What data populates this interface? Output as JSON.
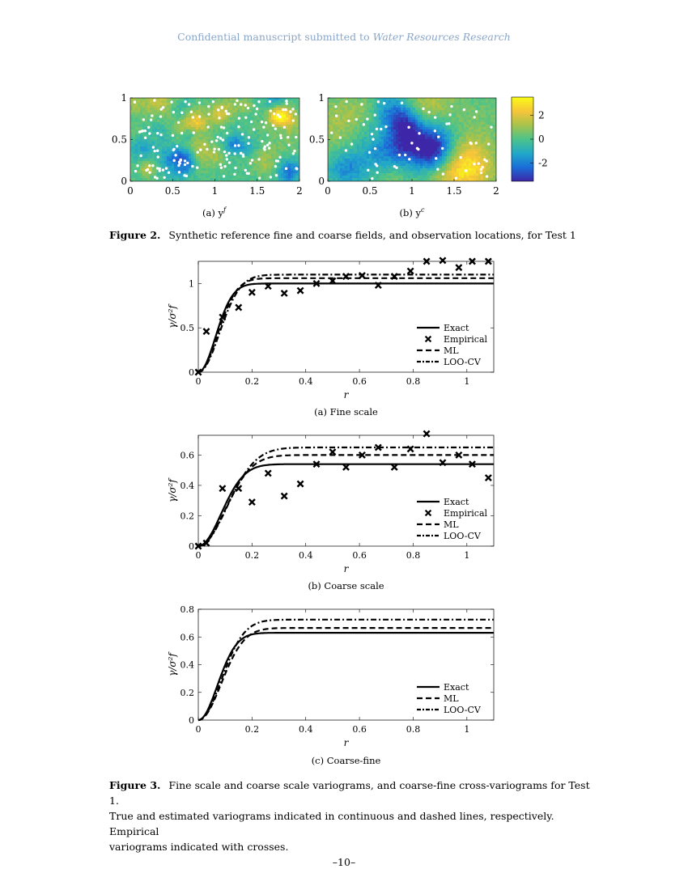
{
  "header": {
    "prefix": "Confidential manuscript submitted to",
    "journal": "Water Resources Research"
  },
  "fields": {
    "panels": [
      {
        "label": "(a) y",
        "sup": "f",
        "x_ticks": [
          "0",
          "0.5",
          "1",
          "1.5",
          "2"
        ],
        "y_ticks": [
          "0",
          "0.5",
          "1"
        ]
      },
      {
        "label": "(b) y",
        "sup": "c",
        "x_ticks": [
          "0",
          "0.5",
          "1",
          "1.5",
          "2"
        ],
        "y_ticks": [
          "0",
          "0.5",
          "1"
        ]
      }
    ],
    "colorbar_ticks": [
      "2",
      "0",
      "-2"
    ],
    "colormap": [
      "#3e26a8",
      "#1a6fd8",
      "#21a8c9",
      "#4cc38a",
      "#a9c34a",
      "#f6c53a",
      "#f9fb14"
    ]
  },
  "figure2_caption": {
    "label": "Figure 2.",
    "text": "Synthetic reference fine and coarse fields, and observation locations, for Test 1"
  },
  "chart_data": [
    {
      "type": "line",
      "caption": "(a) Fine scale",
      "xlabel": "r",
      "ylabel": "γ/σ²f",
      "xlim": [
        0,
        1.1
      ],
      "ylim": [
        0,
        1.25
      ],
      "x_ticks": [
        0,
        0.2,
        0.4,
        0.6,
        0.8,
        1
      ],
      "y_ticks": [
        0,
        0.5,
        1
      ],
      "legend": [
        "Exact",
        "Empirical",
        "ML",
        "LOO-CV"
      ],
      "series": [
        {
          "name": "Exact",
          "style": "solid",
          "sill": 1.0,
          "range": 0.09
        },
        {
          "name": "ML",
          "style": "dashed",
          "sill": 1.06,
          "range": 0.1
        },
        {
          "name": "LOO-CV",
          "style": "dashdot",
          "sill": 1.1,
          "range": 0.11
        }
      ],
      "empirical": {
        "name": "Empirical",
        "x": [
          0,
          0.03,
          0.09,
          0.15,
          0.2,
          0.26,
          0.32,
          0.38,
          0.44,
          0.5,
          0.55,
          0.61,
          0.67,
          0.73,
          0.79,
          0.85,
          0.91,
          0.97,
          1.02,
          1.08
        ],
        "y": [
          0,
          0.46,
          0.62,
          0.73,
          0.9,
          0.97,
          0.89,
          0.92,
          1.0,
          1.03,
          1.08,
          1.09,
          0.98,
          1.08,
          1.14,
          1.25,
          1.26,
          1.18,
          1.25,
          1.25
        ]
      }
    },
    {
      "type": "line",
      "caption": "(b) Coarse scale",
      "xlabel": "r",
      "ylabel": "γ/σ²f",
      "xlim": [
        0,
        1.1
      ],
      "ylim": [
        0,
        0.73
      ],
      "x_ticks": [
        0,
        0.2,
        0.4,
        0.6,
        0.8,
        1
      ],
      "y_ticks": [
        0,
        0.2,
        0.4,
        0.6
      ],
      "legend": [
        "Exact",
        "Empirical",
        "ML",
        "LOO-CV"
      ],
      "series": [
        {
          "name": "Exact",
          "style": "solid",
          "sill": 0.54,
          "range": 0.12
        },
        {
          "name": "ML",
          "style": "dashed",
          "sill": 0.6,
          "range": 0.14
        },
        {
          "name": "LOO-CV",
          "style": "dashdot",
          "sill": 0.65,
          "range": 0.15
        }
      ],
      "empirical": {
        "name": "Empirical",
        "x": [
          0,
          0.03,
          0.09,
          0.15,
          0.2,
          0.26,
          0.32,
          0.38,
          0.44,
          0.5,
          0.55,
          0.61,
          0.67,
          0.73,
          0.79,
          0.85,
          0.91,
          0.97,
          1.02,
          1.08
        ],
        "y": [
          0,
          0.02,
          0.38,
          0.38,
          0.29,
          0.48,
          0.33,
          0.41,
          0.54,
          0.62,
          0.52,
          0.6,
          0.65,
          0.52,
          0.64,
          0.74,
          0.55,
          0.6,
          0.54,
          0.45
        ]
      }
    },
    {
      "type": "line",
      "caption": "(c) Coarse-fine",
      "xlabel": "r",
      "ylabel": "γ/σ²f",
      "xlim": [
        0,
        1.1
      ],
      "ylim": [
        0,
        0.8
      ],
      "x_ticks": [
        0,
        0.2,
        0.4,
        0.6,
        0.8,
        1
      ],
      "y_ticks": [
        0,
        0.2,
        0.4,
        0.6,
        0.8
      ],
      "legend": [
        "Exact",
        "ML",
        "LOO-CV"
      ],
      "series": [
        {
          "name": "Exact",
          "style": "solid",
          "sill": 0.63,
          "range": 0.1
        },
        {
          "name": "ML",
          "style": "dashed",
          "sill": 0.665,
          "range": 0.12
        },
        {
          "name": "LOO-CV",
          "style": "dashdot",
          "sill": 0.725,
          "range": 0.12
        }
      ]
    }
  ],
  "figure3_caption": {
    "label": "Figure 3.",
    "line1": "Fine scale and coarse scale variograms, and coarse-fine cross-variograms for Test 1.",
    "line2": "True and estimated variograms indicated in continuous and dashed lines, respectively. Empirical",
    "line3": "variograms indicated with crosses."
  },
  "page_number": "–10–"
}
